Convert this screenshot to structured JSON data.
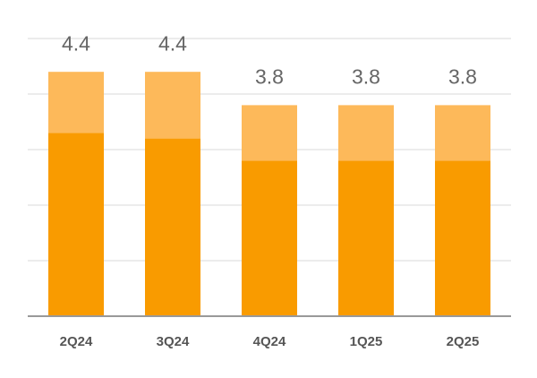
{
  "chart_data": {
    "type": "stacked_bar",
    "categories": [
      "2Q24",
      "3Q24",
      "4Q24",
      "1Q25",
      "2Q25"
    ],
    "series": [
      {
        "color": "#f99b00",
        "values": [
          3.3,
          3.2,
          2.8,
          2.8,
          2.8
        ]
      },
      {
        "color": "#fdb95a",
        "values": [
          1.1,
          1.2,
          1.0,
          1.0,
          1.0
        ]
      }
    ],
    "totals": [
      4.4,
      4.4,
      3.8,
      3.8,
      3.8
    ],
    "ylim": [
      0,
      5
    ],
    "yticks": [
      0,
      1,
      2,
      3,
      4,
      5
    ],
    "grid": true
  }
}
